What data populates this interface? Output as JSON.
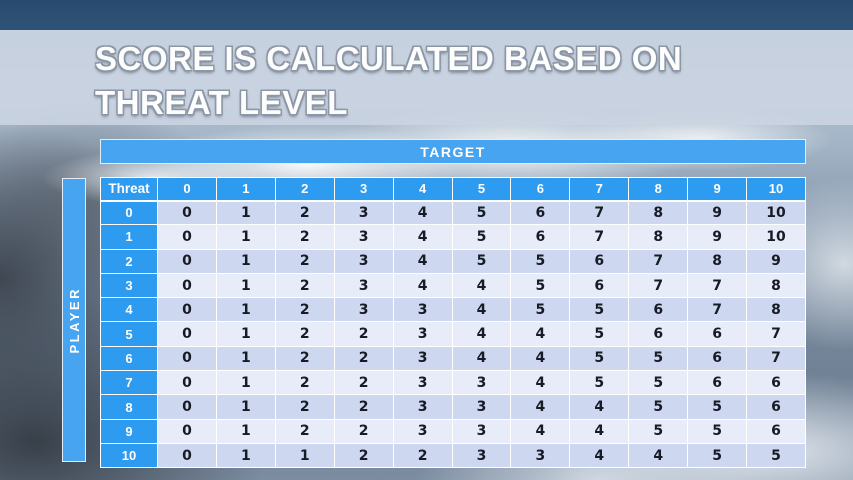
{
  "title": {
    "line1": "SCORE IS CALCULATED BASED ON",
    "line2": "THREAT LEVEL"
  },
  "table": {
    "target_label": "TARGET",
    "player_label": "PLAYER",
    "corner_label": "Threat",
    "column_headers": [
      "0",
      "1",
      "2",
      "3",
      "4",
      "5",
      "6",
      "7",
      "8",
      "9",
      "10"
    ],
    "rows": [
      {
        "threat": "0",
        "values": [
          0,
          1,
          2,
          3,
          4,
          5,
          6,
          7,
          8,
          9,
          10
        ]
      },
      {
        "threat": "1",
        "values": [
          0,
          1,
          2,
          3,
          4,
          5,
          6,
          7,
          8,
          9,
          10
        ]
      },
      {
        "threat": "2",
        "values": [
          0,
          1,
          2,
          3,
          4,
          5,
          5,
          6,
          7,
          8,
          9
        ]
      },
      {
        "threat": "3",
        "values": [
          0,
          1,
          2,
          3,
          4,
          4,
          5,
          6,
          7,
          7,
          8
        ]
      },
      {
        "threat": "4",
        "values": [
          0,
          1,
          2,
          3,
          3,
          4,
          5,
          5,
          6,
          7,
          8
        ]
      },
      {
        "threat": "5",
        "values": [
          0,
          1,
          2,
          2,
          3,
          4,
          4,
          5,
          6,
          6,
          7
        ]
      },
      {
        "threat": "6",
        "values": [
          0,
          1,
          2,
          2,
          3,
          4,
          4,
          5,
          5,
          6,
          7
        ]
      },
      {
        "threat": "7",
        "values": [
          0,
          1,
          2,
          2,
          3,
          3,
          4,
          5,
          5,
          6,
          6
        ]
      },
      {
        "threat": "8",
        "values": [
          0,
          1,
          2,
          2,
          3,
          3,
          4,
          4,
          5,
          5,
          6
        ]
      },
      {
        "threat": "9",
        "values": [
          0,
          1,
          2,
          2,
          3,
          3,
          4,
          4,
          5,
          5,
          6
        ]
      },
      {
        "threat": "10",
        "values": [
          0,
          1,
          1,
          2,
          2,
          3,
          3,
          4,
          4,
          5,
          5
        ]
      }
    ]
  },
  "colors": {
    "header_blue": "#2d9bf0",
    "band_blue": "#47a4f0",
    "row_even": "#cdd8f0",
    "row_odd": "#e8ecf8",
    "title_text": "#fdfdfe",
    "top_sky": "#2f5378"
  }
}
